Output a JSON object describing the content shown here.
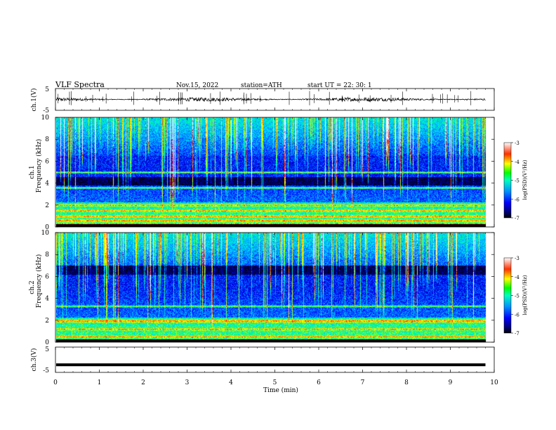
{
  "header": {
    "title": "VLF  Spectra",
    "date": "Nov.15, 2022",
    "station": "station=ATH",
    "start": "start  UT  =    22: 30: 1"
  },
  "chart_data": {
    "type": "heatmap",
    "x_axis": {
      "label": "Time  (min)",
      "range": [
        0,
        10
      ],
      "ticks": [
        "0",
        "1",
        "2",
        "3",
        "4",
        "5",
        "6",
        "7",
        "8",
        "9",
        "10"
      ],
      "data_end": 9.8
    },
    "panels": [
      {
        "id": "ch1-waveform",
        "type": "line",
        "ylabel": "ch.1(V)",
        "ylim": [
          -5,
          5
        ],
        "yticks": [
          "5",
          "-5"
        ],
        "baseline": 0,
        "noise_amplitude": 0.9
      },
      {
        "id": "ch1-spectrogram",
        "type": "heatmap",
        "ylabel_top": "ch.1",
        "ylabel": "Frequency  (kHz)",
        "ylim": [
          0,
          10
        ],
        "yticks": [
          "0",
          "2",
          "4",
          "6",
          "8",
          "10"
        ],
        "bright_bands_khz": [
          0.3,
          0.6,
          1.0,
          1.5,
          2.0,
          3.6,
          5.0
        ],
        "dark_band_khz": [
          3.8,
          4.6
        ],
        "colorbar": {
          "label": "log(PSD)(V²/Hz)",
          "range": [
            -7,
            -3
          ],
          "ticks": [
            "-3",
            "-4",
            "-5",
            "-6",
            "-7"
          ]
        }
      },
      {
        "id": "ch2-spectrogram",
        "type": "heatmap",
        "ylabel_top": "ch.2",
        "ylabel": "Frequency  (kHz)",
        "ylim": [
          0,
          10
        ],
        "yticks": [
          "0",
          "2",
          "4",
          "6",
          "8",
          "10"
        ],
        "bright_bands_khz": [
          0.5,
          1.2,
          1.9,
          2.0,
          3.3
        ],
        "dark_band_khz": [
          6.2,
          7.0
        ],
        "colorbar": {
          "label": "log(PSD)(V²/Hz)",
          "range": [
            -7,
            -3
          ],
          "ticks": [
            "-3",
            "-4",
            "-5",
            "-6",
            "-7"
          ]
        }
      },
      {
        "id": "ch3-waveform",
        "type": "line",
        "ylabel": "ch.3(V)",
        "ylim": [
          -5,
          5
        ],
        "yticks": [
          "5",
          "-5"
        ],
        "baseline": -2
      }
    ],
    "colormap": [
      "#000000",
      "#00007a",
      "#0000ff",
      "#0080ff",
      "#00e0ff",
      "#00ff80",
      "#c0ff00",
      "#ffff00",
      "#ff8000",
      "#ff0000",
      "#ffffff"
    ]
  }
}
